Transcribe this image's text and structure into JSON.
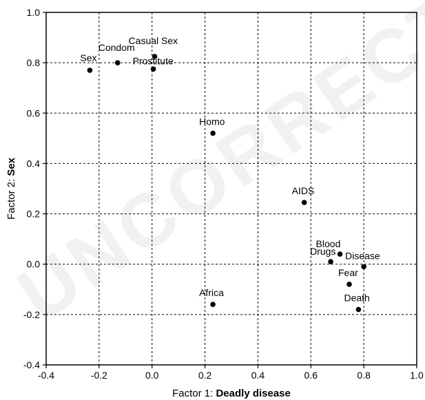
{
  "watermark": "UNCORRECTED",
  "chart_data": {
    "type": "scatter",
    "title": "",
    "xlabel": {
      "prefix": "Factor 1: ",
      "emphasis": "Deadly disease"
    },
    "ylabel": {
      "prefix": "Factor 2: ",
      "emphasis": "Sex"
    },
    "xlim": [
      -0.4,
      1.0
    ],
    "ylim": [
      -0.4,
      1.0
    ],
    "xticks": [
      -0.4,
      -0.2,
      0.0,
      0.2,
      0.4,
      0.6,
      0.8,
      1.0
    ],
    "yticks": [
      -0.4,
      -0.2,
      0.0,
      0.2,
      0.4,
      0.6,
      0.8,
      1.0
    ],
    "xtick_labels": [
      "-0.4",
      "-0.2",
      "0.0",
      "0.2",
      "0.4",
      "0.6",
      "0.8",
      "1.0"
    ],
    "ytick_labels": [
      "-0.4",
      "-0.2",
      "0.0",
      "0.2",
      "0.4",
      "0.6",
      "0.8",
      "1.0"
    ],
    "grid": true,
    "points": [
      {
        "label": "Sex",
        "x": -0.235,
        "y": 0.77
      },
      {
        "label": "Condom",
        "x": -0.13,
        "y": 0.8
      },
      {
        "label": "Casual Sex",
        "x": 0.01,
        "y": 0.825
      },
      {
        "label": "Prostitute",
        "x": 0.005,
        "y": 0.775
      },
      {
        "label": "Homo",
        "x": 0.23,
        "y": 0.52
      },
      {
        "label": "AIDS",
        "x": 0.575,
        "y": 0.245
      },
      {
        "label": "Blood",
        "x": 0.71,
        "y": 0.04
      },
      {
        "label": "Drugs",
        "x": 0.675,
        "y": 0.01
      },
      {
        "label": "Disease",
        "x": 0.8,
        "y": -0.01
      },
      {
        "label": "Fear",
        "x": 0.745,
        "y": -0.08
      },
      {
        "label": "Death",
        "x": 0.78,
        "y": -0.18
      },
      {
        "label": "Africa",
        "x": 0.23,
        "y": -0.16
      }
    ]
  }
}
